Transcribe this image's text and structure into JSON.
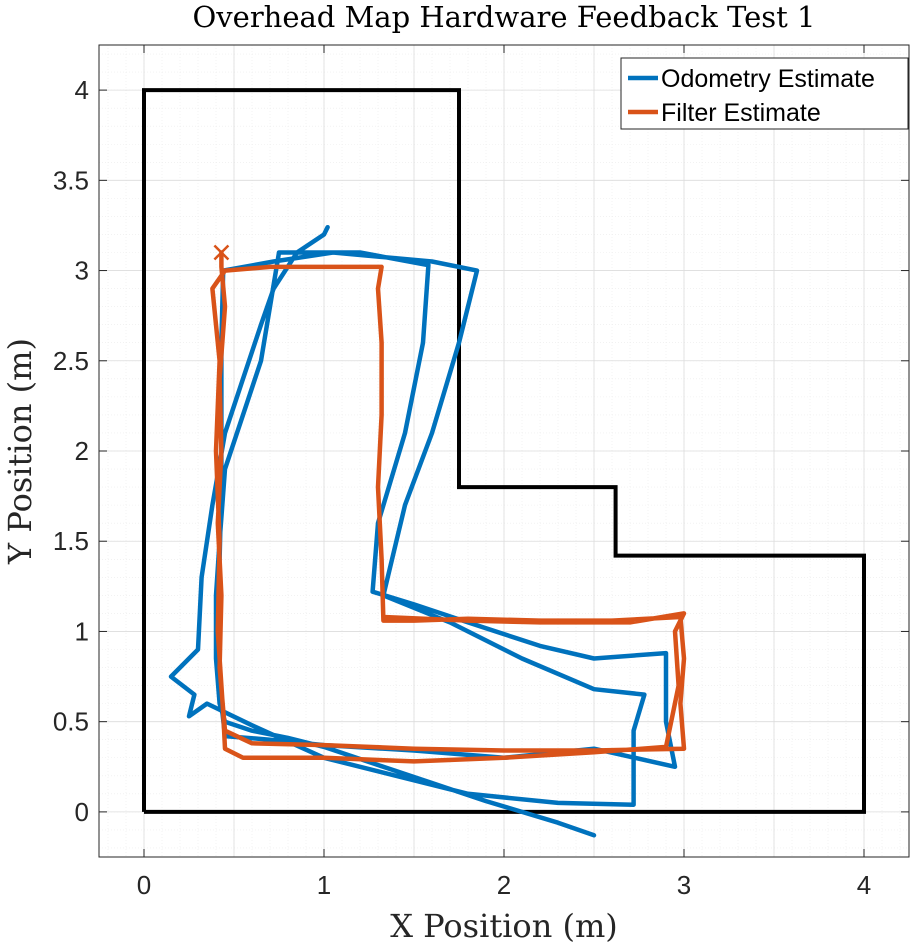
{
  "chart_data": {
    "type": "line",
    "title": "Overhead Map Hardware Feedback Test 1",
    "xlabel": "X Position (m)",
    "ylabel": "Y Position (m)",
    "xlim": [
      -0.25,
      4.25
    ],
    "ylim": [
      -0.25,
      4.25
    ],
    "xticks": [
      0,
      1,
      2,
      3,
      4
    ],
    "yticks": [
      0,
      0.5,
      1,
      1.5,
      2,
      2.5,
      3,
      3.5,
      4
    ],
    "xtick_labels": [
      "0",
      "1",
      "2",
      "3",
      "4"
    ],
    "ytick_labels": [
      "0",
      "0.5",
      "1",
      "1.5",
      "2",
      "2.5",
      "3",
      "3.5",
      "4"
    ],
    "grid": true,
    "minor_grid": true,
    "legend_position": "top-right",
    "map_boundary": [
      [
        0,
        0
      ],
      [
        0,
        4
      ],
      [
        1.75,
        4
      ],
      [
        1.75,
        1.8
      ],
      [
        2.62,
        1.8
      ],
      [
        2.62,
        1.42
      ],
      [
        4,
        1.42
      ],
      [
        4,
        0
      ],
      [
        0,
        0
      ]
    ],
    "series": [
      {
        "name": "Odometry Estimate",
        "color": "#0072BD",
        "points": [
          [
            2.5,
            -0.13
          ],
          [
            2.3,
            -0.06
          ],
          [
            2.1,
            0.0
          ],
          [
            1.9,
            0.06
          ],
          [
            1.6,
            0.16
          ],
          [
            1.3,
            0.26
          ],
          [
            1.0,
            0.36
          ],
          [
            0.8,
            0.41
          ],
          [
            0.6,
            0.45
          ],
          [
            0.45,
            0.5
          ],
          [
            0.42,
            0.6
          ],
          [
            0.4,
            0.85
          ],
          [
            0.4,
            1.2
          ],
          [
            0.42,
            1.5
          ],
          [
            0.45,
            1.9
          ],
          [
            0.55,
            2.2
          ],
          [
            0.65,
            2.5
          ],
          [
            0.7,
            2.8
          ],
          [
            0.75,
            3.1
          ],
          [
            1.2,
            3.1
          ],
          [
            1.58,
            3.03
          ],
          [
            1.55,
            2.6
          ],
          [
            1.45,
            2.1
          ],
          [
            1.3,
            1.6
          ],
          [
            1.27,
            1.22
          ],
          [
            1.5,
            1.15
          ],
          [
            1.8,
            1.05
          ],
          [
            2.2,
            0.92
          ],
          [
            2.5,
            0.85
          ],
          [
            2.9,
            0.88
          ],
          [
            2.9,
            0.5
          ],
          [
            2.95,
            0.25
          ],
          [
            2.5,
            0.35
          ],
          [
            2.0,
            0.3
          ],
          [
            1.5,
            0.34
          ],
          [
            1.0,
            0.37
          ],
          [
            0.7,
            0.4
          ],
          [
            0.45,
            0.42
          ],
          [
            0.43,
            0.6
          ],
          [
            0.4,
            1.0
          ],
          [
            0.42,
            1.4
          ],
          [
            0.43,
            1.8
          ],
          [
            0.43,
            2.2
          ],
          [
            0.43,
            2.6
          ],
          [
            0.44,
            3.0
          ],
          [
            0.72,
            3.05
          ],
          [
            1.05,
            3.1
          ],
          [
            1.6,
            3.05
          ],
          [
            1.85,
            3.0
          ],
          [
            1.75,
            2.6
          ],
          [
            1.6,
            2.1
          ],
          [
            1.45,
            1.7
          ],
          [
            1.33,
            1.2
          ],
          [
            1.7,
            1.05
          ],
          [
            2.1,
            0.85
          ],
          [
            2.5,
            0.68
          ],
          [
            2.78,
            0.65
          ],
          [
            2.72,
            0.45
          ],
          [
            2.72,
            0.04
          ],
          [
            2.3,
            0.05
          ],
          [
            1.8,
            0.1
          ],
          [
            1.4,
            0.2
          ],
          [
            1.0,
            0.3
          ],
          [
            0.6,
            0.48
          ],
          [
            0.35,
            0.6
          ],
          [
            0.25,
            0.53
          ],
          [
            0.28,
            0.65
          ],
          [
            0.15,
            0.75
          ],
          [
            0.3,
            0.9
          ],
          [
            0.32,
            1.3
          ],
          [
            0.38,
            1.7
          ],
          [
            0.45,
            2.1
          ],
          [
            0.55,
            2.4
          ],
          [
            0.65,
            2.7
          ],
          [
            0.72,
            2.9
          ],
          [
            0.85,
            3.1
          ],
          [
            1.0,
            3.2
          ],
          [
            1.02,
            3.24
          ]
        ]
      },
      {
        "name": "Filter Estimate",
        "color": "#D95319",
        "points": [
          [
            0.43,
            3.1
          ],
          [
            0.43,
            3.02
          ],
          [
            0.45,
            2.8
          ],
          [
            0.42,
            2.4
          ],
          [
            0.43,
            2.0
          ],
          [
            0.41,
            1.6
          ],
          [
            0.43,
            1.2
          ],
          [
            0.42,
            0.8
          ],
          [
            0.45,
            0.45
          ],
          [
            0.6,
            0.38
          ],
          [
            1.0,
            0.37
          ],
          [
            1.5,
            0.35
          ],
          [
            2.0,
            0.34
          ],
          [
            2.5,
            0.34
          ],
          [
            3.0,
            0.35
          ],
          [
            2.98,
            0.6
          ],
          [
            3.0,
            0.85
          ],
          [
            2.98,
            1.08
          ],
          [
            2.6,
            1.06
          ],
          [
            2.2,
            1.06
          ],
          [
            1.8,
            1.07
          ],
          [
            1.5,
            1.06
          ],
          [
            1.33,
            1.06
          ],
          [
            1.32,
            1.4
          ],
          [
            1.3,
            1.8
          ],
          [
            1.32,
            2.2
          ],
          [
            1.32,
            2.6
          ],
          [
            1.3,
            2.9
          ],
          [
            1.32,
            3.02
          ],
          [
            1.0,
            3.02
          ],
          [
            0.7,
            3.02
          ],
          [
            0.45,
            3.0
          ],
          [
            0.38,
            2.9
          ],
          [
            0.42,
            2.5
          ],
          [
            0.4,
            2.0
          ],
          [
            0.42,
            1.5
          ],
          [
            0.41,
            1.0
          ],
          [
            0.44,
            0.55
          ],
          [
            0.45,
            0.35
          ],
          [
            0.55,
            0.3
          ],
          [
            1.0,
            0.3
          ],
          [
            1.5,
            0.28
          ],
          [
            2.0,
            0.3
          ],
          [
            2.5,
            0.33
          ],
          [
            2.9,
            0.36
          ],
          [
            2.97,
            0.7
          ],
          [
            2.95,
            1.0
          ],
          [
            3.0,
            1.1
          ],
          [
            2.7,
            1.05
          ],
          [
            2.2,
            1.05
          ],
          [
            1.8,
            1.06
          ],
          [
            1.33,
            1.08
          ]
        ]
      }
    ],
    "end_marker": {
      "label": "x",
      "x": 0.43,
      "y": 3.1
    }
  },
  "legend": {
    "items": [
      {
        "label": "Odometry Estimate",
        "color": "#0072BD"
      },
      {
        "label": "Filter Estimate",
        "color": "#D95319"
      }
    ]
  }
}
